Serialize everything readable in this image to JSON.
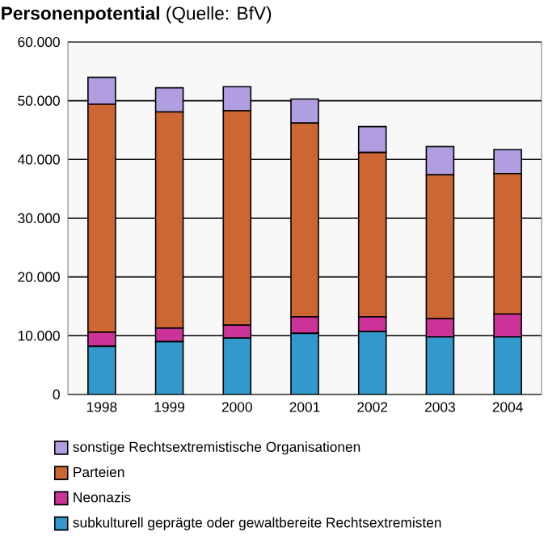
{
  "chart_data": {
    "type": "bar",
    "title": "**Personenpotential** (Quelle: BfV)",
    "stacked": true,
    "categories": [
      "1998",
      "1999",
      "2000",
      "2001",
      "2002",
      "2003",
      "2004"
    ],
    "series": [
      {
        "name": "subkulturell geprägte oder gewaltbereite Rechtsextremisten",
        "color": "#3399cc",
        "values": [
          8200,
          9000,
          9600,
          10400,
          10700,
          9800,
          9800
        ]
      },
      {
        "name": "Neonazis",
        "color": "#cc3399",
        "values": [
          2400,
          2300,
          2200,
          2800,
          2500,
          3100,
          3900
        ]
      },
      {
        "name": "Parteien",
        "color": "#cc6633",
        "values": [
          38800,
          36800,
          36500,
          33000,
          28000,
          24500,
          23900
        ]
      },
      {
        "name": "sonstige Rechtsextremistische Organisationen",
        "color": "#b09ee0",
        "values": [
          4600,
          4100,
          4100,
          4100,
          4400,
          4800,
          4100
        ]
      }
    ],
    "ylim": [
      0,
      60000
    ],
    "yticks": [
      {
        "value": 0,
        "label": "0"
      },
      {
        "value": 10000,
        "label": "10.000"
      },
      {
        "value": 20000,
        "label": "20.000"
      },
      {
        "value": 30000,
        "label": "30.000"
      },
      {
        "value": 40000,
        "label": "40.000"
      },
      {
        "value": 50000,
        "label": "50.000"
      },
      {
        "value": 60000,
        "label": "60.000"
      }
    ],
    "grid": "y",
    "legend": "bottom"
  }
}
